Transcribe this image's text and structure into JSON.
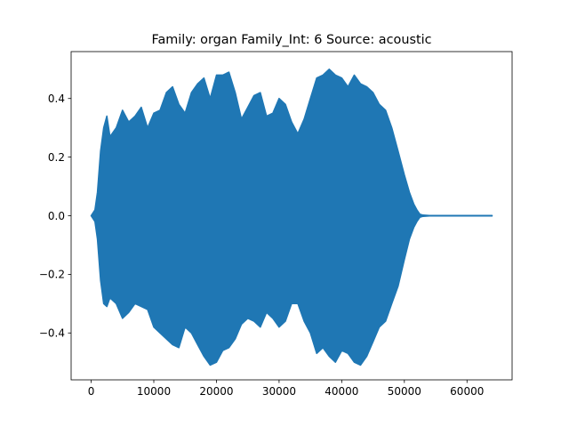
{
  "chart_data": {
    "type": "area",
    "title": "Family: organ Family_Int: 6 Source: acoustic",
    "xlabel": "",
    "ylabel": "",
    "xlim": [
      -3200,
      67200
    ],
    "ylim": [
      -0.56,
      0.56
    ],
    "grid": false,
    "legend": "none",
    "x_ticks": [
      0,
      10000,
      20000,
      30000,
      40000,
      50000,
      60000
    ],
    "x_tick_labels": [
      "0",
      "10000",
      "20000",
      "30000",
      "40000",
      "50000",
      "60000"
    ],
    "y_ticks": [
      -0.4,
      -0.2,
      0.0,
      0.2,
      0.4
    ],
    "y_tick_labels": [
      "−0.4",
      "−0.2",
      "0.0",
      "0.2",
      "0.4"
    ],
    "series": [
      {
        "color": "#1f77b4",
        "x": [
          0,
          600,
          1000,
          1500,
          2000,
          2500,
          3000,
          4000,
          5000,
          6000,
          7000,
          8000,
          9000,
          10000,
          11000,
          12000,
          13000,
          14000,
          15000,
          16000,
          17000,
          18000,
          19000,
          20000,
          21000,
          22000,
          23000,
          24000,
          25000,
          26000,
          27000,
          28000,
          29000,
          30000,
          31000,
          32000,
          33000,
          34000,
          35000,
          36000,
          37000,
          38000,
          39000,
          40000,
          41000,
          42000,
          43000,
          44000,
          45000,
          46000,
          47000,
          48000,
          49000,
          50000,
          50800,
          51500,
          52000,
          52500,
          53000,
          54000,
          64000
        ],
        "upper": [
          0.0,
          0.02,
          0.08,
          0.22,
          0.3,
          0.34,
          0.27,
          0.3,
          0.36,
          0.32,
          0.34,
          0.37,
          0.3,
          0.35,
          0.36,
          0.42,
          0.44,
          0.38,
          0.35,
          0.42,
          0.45,
          0.47,
          0.4,
          0.48,
          0.48,
          0.49,
          0.42,
          0.33,
          0.37,
          0.41,
          0.42,
          0.34,
          0.35,
          0.4,
          0.38,
          0.32,
          0.28,
          0.33,
          0.4,
          0.47,
          0.48,
          0.5,
          0.48,
          0.47,
          0.44,
          0.48,
          0.45,
          0.44,
          0.42,
          0.38,
          0.36,
          0.3,
          0.22,
          0.14,
          0.08,
          0.04,
          0.02,
          0.005,
          0.002,
          0.001,
          0.001
        ],
        "lower": [
          0.0,
          -0.02,
          -0.08,
          -0.22,
          -0.3,
          -0.31,
          -0.28,
          -0.3,
          -0.35,
          -0.33,
          -0.3,
          -0.31,
          -0.32,
          -0.38,
          -0.4,
          -0.42,
          -0.44,
          -0.45,
          -0.38,
          -0.4,
          -0.44,
          -0.48,
          -0.51,
          -0.5,
          -0.46,
          -0.45,
          -0.42,
          -0.37,
          -0.35,
          -0.36,
          -0.38,
          -0.33,
          -0.35,
          -0.38,
          -0.36,
          -0.3,
          -0.3,
          -0.36,
          -0.4,
          -0.47,
          -0.45,
          -0.48,
          -0.5,
          -0.46,
          -0.47,
          -0.5,
          -0.51,
          -0.48,
          -0.43,
          -0.38,
          -0.36,
          -0.3,
          -0.24,
          -0.15,
          -0.08,
          -0.04,
          -0.02,
          -0.005,
          -0.002,
          -0.001,
          -0.001
        ]
      }
    ]
  }
}
